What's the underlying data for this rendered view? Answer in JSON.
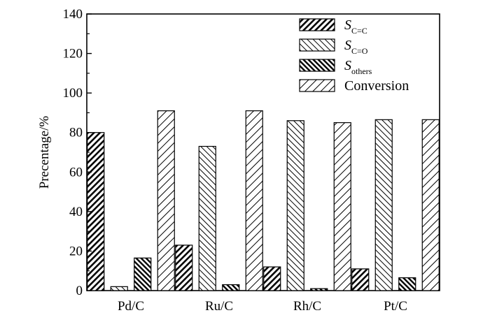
{
  "chart_data": {
    "type": "bar",
    "title": "",
    "xlabel": "",
    "ylabel": "Precentage/%",
    "ylim": [
      0,
      140
    ],
    "yticks": [
      0,
      20,
      40,
      60,
      80,
      100,
      120,
      140
    ],
    "categories": [
      "Pd/C",
      "Ru/C",
      "Rh/C",
      "Pt/C"
    ],
    "series": [
      {
        "name": "S",
        "subscript": "C=C",
        "values": [
          80,
          23,
          12,
          11
        ]
      },
      {
        "name": "S",
        "subscript": "C=O",
        "values": [
          2,
          73,
          86,
          86.5
        ]
      },
      {
        "name": "S",
        "subscript": "others",
        "values": [
          16.5,
          3,
          1,
          6.5
        ]
      },
      {
        "name": "Conversion",
        "subscript": "",
        "values": [
          91,
          91,
          85,
          86.5
        ]
      }
    ],
    "legend_position": "top-right",
    "grid": false
  }
}
